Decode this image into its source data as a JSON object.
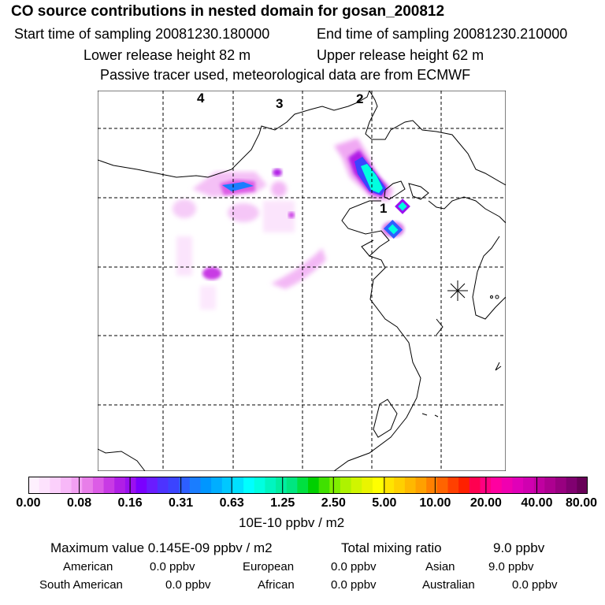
{
  "header": {
    "title": "CO  source contributions in nested domain for gosan_200812",
    "start_label": "Start time of sampling 20081230.180000",
    "end_label": "End time of sampling 20081230.210000",
    "lower_label": "Lower release height   82 m",
    "upper_label": "Upper release height   62 m",
    "tracer_note": "Passive tracer used, meteorological data are from ECMWF"
  },
  "map": {
    "region_labels": [
      "1",
      "2",
      "3",
      "4"
    ],
    "receptor_marker": "asterisk-icon"
  },
  "chart_data": {
    "type": "heatmap",
    "title": "CO  source contributions in nested domain for gosan_200812",
    "colorbar": {
      "tick_labels": [
        "0.00",
        "0.08",
        "0.16",
        "0.31",
        "0.63",
        "1.25",
        "2.50",
        "5.00",
        "10.00",
        "20.00",
        "40.00",
        "80.00"
      ],
      "units": "10E-10 ppbv / m2",
      "colors": [
        "#fef0fe",
        "#fde2fd",
        "#fbd0fb",
        "#f7b8f8",
        "#f2a0f2",
        "#e87ee9",
        "#dc5ce6",
        "#c83ae4",
        "#b01fe6",
        "#9b10f0",
        "#7a00ff",
        "#6a1cff",
        "#4d33ff",
        "#3b44ff",
        "#2d5eff",
        "#1a7dff",
        "#0096ff",
        "#00aeff",
        "#00c8ff",
        "#00e0ff",
        "#00ffff",
        "#00ffe0",
        "#00f5c0",
        "#00eea0",
        "#00e680",
        "#00e040",
        "#00d000",
        "#40e000",
        "#80ee00",
        "#aef200",
        "#d0f500",
        "#eaf400",
        "#ffff00",
        "#ffe400",
        "#ffd000",
        "#ffb800",
        "#ffa000",
        "#ff8000",
        "#ff6400",
        "#ff4000",
        "#ff2000",
        "#ff0050",
        "#ff0080",
        "#ff00a0",
        "#f000b0",
        "#e000b8",
        "#d000b0",
        "#c000a0",
        "#ad0090",
        "#980080",
        "#800070",
        "#680058"
      ]
    },
    "plumes": [
      {
        "name": "plume-near-region-2",
        "value_level": "0.63-1.25"
      },
      {
        "name": "plume-region-4",
        "value_level": "0.16-0.31"
      },
      {
        "name": "plume-near-region-1-east",
        "value_level": "0.31-0.63"
      },
      {
        "name": "plume-near-region-1-south",
        "value_level": "0.31-0.63"
      },
      {
        "name": "plume-inland-south",
        "value_level": "0.08-0.16"
      }
    ]
  },
  "stats": {
    "max_label": "Maximum value  0.145E-09 ppbv / m2",
    "total_label": "Total mixing ratio",
    "total_value": "9.0 ppbv",
    "american_label": "American",
    "american_value": "0.0 ppbv",
    "european_label": "European",
    "european_value": "0.0 ppbv",
    "asian_label": "Asian",
    "asian_value": "9.0 ppbv",
    "south_american_label": "South American",
    "south_american_value": "0.0 ppbv",
    "african_label": "African",
    "african_value": "0.0 ppbv",
    "australian_label": "Australian",
    "australian_value": "0.0 ppbv"
  }
}
